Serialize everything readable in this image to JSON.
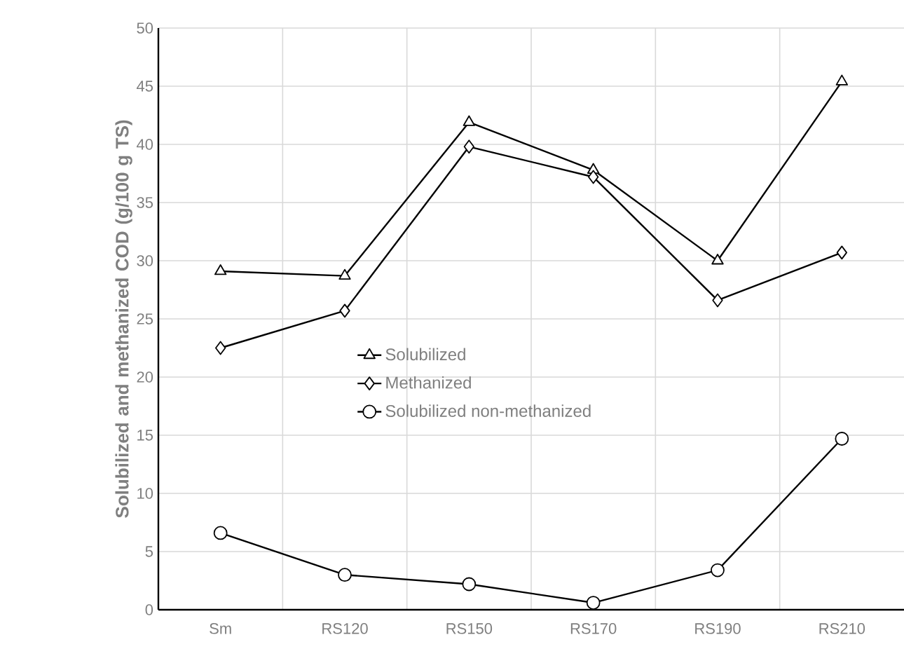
{
  "chart_data": {
    "type": "line",
    "ylabel": "Solubilized and methanized COD (g/100 g TS)",
    "categories": [
      "Sm",
      "RS120",
      "RS150",
      "RS170",
      "RS190",
      "RS210"
    ],
    "series": [
      {
        "name": "Solubilized",
        "color": "#000000",
        "marker": "triangle",
        "values": [
          29.1,
          28.7,
          41.9,
          37.8,
          30.0,
          45.4
        ]
      },
      {
        "name": "Methanized",
        "color": "#000000",
        "marker": "diamond",
        "values": [
          22.5,
          25.7,
          39.8,
          37.2,
          26.6,
          30.7
        ]
      },
      {
        "name": "Solubilized non-methanized",
        "color": "#000000",
        "marker": "circle",
        "values": [
          6.6,
          3.0,
          2.2,
          0.6,
          3.4,
          14.7
        ]
      }
    ],
    "ylim": [
      0,
      50
    ],
    "yticks": [
      0,
      5,
      10,
      15,
      20,
      25,
      30,
      35,
      40,
      45,
      50
    ],
    "grid": true,
    "legend": "center",
    "line_style": "solid"
  }
}
